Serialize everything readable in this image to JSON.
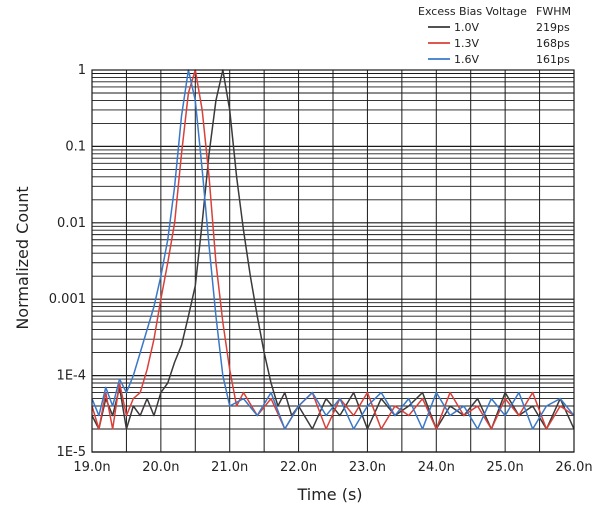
{
  "chart_data": {
    "type": "line",
    "title": "",
    "xlabel": "Time (s)",
    "ylabel": "Normalized Count",
    "xlim": [
      19.0,
      26.0
    ],
    "ylim": [
      1e-05,
      1
    ],
    "y_scale": "log",
    "grid": true,
    "legend_position": "top-right",
    "legend": {
      "header_left": "Excess Bias Voltage",
      "header_right": "FWHM"
    },
    "x_ticks": [
      {
        "value": 19.0,
        "label": "19.0n"
      },
      {
        "value": 20.0,
        "label": "20.0n"
      },
      {
        "value": 21.0,
        "label": "21.0n"
      },
      {
        "value": 22.0,
        "label": "22.0n"
      },
      {
        "value": 23.0,
        "label": "23.0n"
      },
      {
        "value": 24.0,
        "label": "24.0n"
      },
      {
        "value": 25.0,
        "label": "25.0n"
      },
      {
        "value": 26.0,
        "label": "26.0n"
      }
    ],
    "y_ticks": [
      {
        "value": 1,
        "label": "1"
      },
      {
        "value": 0.1,
        "label": "0.1"
      },
      {
        "value": 0.01,
        "label": "0.01"
      },
      {
        "value": 0.001,
        "label": "0.001"
      },
      {
        "value": 0.0001,
        "label": "1E-4"
      },
      {
        "value": 1e-05,
        "label": "1E-5"
      }
    ],
    "series": [
      {
        "name": "1.0V",
        "fwhm": "219ps",
        "color": "#3a3a3a",
        "x": [
          19.0,
          19.1,
          19.2,
          19.3,
          19.4,
          19.5,
          19.6,
          19.7,
          19.8,
          19.9,
          20.0,
          20.1,
          20.2,
          20.3,
          20.4,
          20.5,
          20.6,
          20.7,
          20.8,
          20.9,
          21.0,
          21.1,
          21.2,
          21.3,
          21.4,
          21.5,
          21.6,
          21.7,
          21.8,
          21.9,
          22.0,
          22.2,
          22.4,
          22.6,
          22.8,
          23.0,
          23.2,
          23.4,
          23.6,
          23.8,
          24.0,
          24.2,
          24.4,
          24.6,
          24.8,
          25.0,
          25.2,
          25.4,
          25.6,
          25.8,
          26.0
        ],
        "y": [
          3e-05,
          2e-05,
          5e-05,
          3e-05,
          7e-05,
          2e-05,
          4e-05,
          3e-05,
          5e-05,
          3e-05,
          6e-05,
          8e-05,
          0.00015,
          0.00025,
          0.0006,
          0.0015,
          0.01,
          0.08,
          0.4,
          1.0,
          0.3,
          0.04,
          0.008,
          0.002,
          0.0006,
          0.0002,
          8e-05,
          4e-05,
          6e-05,
          3e-05,
          4e-05,
          2e-05,
          5e-05,
          3e-05,
          6e-05,
          2e-05,
          5e-05,
          3e-05,
          4e-05,
          6e-05,
          2e-05,
          4e-05,
          3e-05,
          5e-05,
          2e-05,
          6e-05,
          3e-05,
          4e-05,
          2e-05,
          5e-05,
          2e-05
        ]
      },
      {
        "name": "1.3V",
        "fwhm": "168ps",
        "color": "#d9403a",
        "x": [
          19.0,
          19.1,
          19.2,
          19.3,
          19.4,
          19.5,
          19.6,
          19.7,
          19.8,
          19.9,
          20.0,
          20.1,
          20.2,
          20.3,
          20.4,
          20.5,
          20.6,
          20.7,
          20.8,
          20.9,
          21.0,
          21.1,
          21.2,
          21.4,
          21.6,
          21.8,
          22.0,
          22.2,
          22.4,
          22.6,
          22.8,
          23.0,
          23.2,
          23.4,
          23.6,
          23.8,
          24.0,
          24.2,
          24.4,
          24.6,
          24.8,
          25.0,
          25.2,
          25.4,
          25.6,
          25.8,
          26.0
        ],
        "y": [
          4e-05,
          2e-05,
          6e-05,
          2e-05,
          8e-05,
          3e-05,
          5e-05,
          6e-05,
          0.00012,
          0.0003,
          0.001,
          0.003,
          0.01,
          0.08,
          0.5,
          1.0,
          0.3,
          0.04,
          0.003,
          0.0005,
          0.00012,
          4e-05,
          6e-05,
          3e-05,
          5e-05,
          2e-05,
          4e-05,
          6e-05,
          2e-05,
          5e-05,
          3e-05,
          6e-05,
          2e-05,
          4e-05,
          3e-05,
          5e-05,
          2e-05,
          6e-05,
          3e-05,
          4e-05,
          2e-05,
          5e-05,
          3e-05,
          6e-05,
          2e-05,
          4e-05,
          3e-05
        ]
      },
      {
        "name": "1.6V",
        "fwhm": "161ps",
        "color": "#3a78c8",
        "x": [
          19.0,
          19.1,
          19.2,
          19.3,
          19.4,
          19.5,
          19.6,
          19.7,
          19.8,
          19.9,
          20.0,
          20.1,
          20.2,
          20.3,
          20.4,
          20.5,
          20.6,
          20.7,
          20.8,
          20.9,
          21.0,
          21.2,
          21.4,
          21.6,
          21.8,
          22.0,
          22.2,
          22.4,
          22.6,
          22.8,
          23.0,
          23.2,
          23.4,
          23.6,
          23.8,
          24.0,
          24.2,
          24.4,
          24.6,
          24.8,
          25.0,
          25.2,
          25.4,
          25.6,
          25.8,
          26.0
        ],
        "y": [
          5e-05,
          3e-05,
          7e-05,
          4e-05,
          9e-05,
          6e-05,
          0.0001,
          0.0002,
          0.0004,
          0.0008,
          0.002,
          0.006,
          0.03,
          0.25,
          1.0,
          0.4,
          0.05,
          0.005,
          0.0006,
          0.0001,
          4e-05,
          5e-05,
          3e-05,
          6e-05,
          2e-05,
          4e-05,
          6e-05,
          3e-05,
          5e-05,
          2e-05,
          4e-05,
          6e-05,
          3e-05,
          5e-05,
          2e-05,
          6e-05,
          3e-05,
          4e-05,
          2e-05,
          5e-05,
          3e-05,
          6e-05,
          2e-05,
          4e-05,
          5e-05,
          3e-05
        ]
      }
    ]
  }
}
